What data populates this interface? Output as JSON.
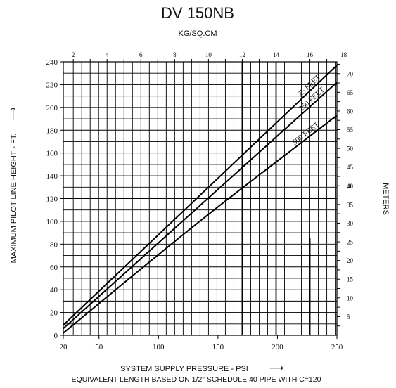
{
  "chart_data": {
    "type": "line",
    "title": "DV 150NB",
    "top_axis_label": "KG/SQ.CM",
    "xlabel": "SYSTEM SUPPLY PRESSURE - PSI",
    "xlabel_arrow": "⟶",
    "footnote": "EQUIVALENT LENGTH BASED ON 1/2\" SCHEDULE 40 PIPE WITH C=120",
    "ylabel": "MAXIMUM PILOT LINE HEIGHT - FT.",
    "ylabel_arrow": "⟶",
    "right_axis_label": "METERS",
    "xlim": [
      20,
      250
    ],
    "ylim": [
      0,
      240
    ],
    "top_lim": [
      1.41,
      17.6
    ],
    "right_lim": [
      0,
      73.15
    ],
    "x_ticks": [
      "20",
      "50",
      "100",
      "150",
      "200",
      "250"
    ],
    "y_ticks": [
      "0",
      "20",
      "40",
      "60",
      "80",
      "100",
      "120",
      "140",
      "160",
      "180",
      "200",
      "220",
      "240"
    ],
    "top_ticks": [
      "2",
      "4",
      "6",
      "8",
      "10",
      "12",
      "14",
      "16",
      "18"
    ],
    "right_ticks": [
      "5",
      "10",
      "15",
      "20",
      "25",
      "30",
      "35",
      "40",
      "45",
      "50",
      "55",
      "60",
      "65",
      "70"
    ],
    "grid": true,
    "series": [
      {
        "name": "25 FEET",
        "x": [
          20,
          250
        ],
        "y": [
          9,
          237
        ]
      },
      {
        "name": "250 FEET",
        "x": [
          20,
          250
        ],
        "y": [
          6,
          222
        ]
      },
      {
        "name": "500 FEET",
        "x": [
          20,
          100,
          150,
          200,
          250
        ],
        "y": [
          2,
          71,
          113,
          153,
          193
        ]
      }
    ]
  }
}
